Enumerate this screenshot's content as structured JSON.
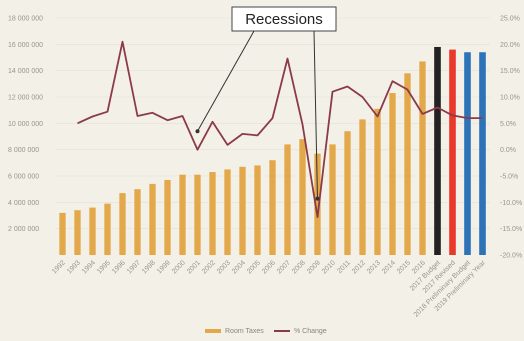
{
  "chart_data": {
    "type": "bar",
    "categories": [
      "1992",
      "1993",
      "1994",
      "1995",
      "1996",
      "1997",
      "1998",
      "1999",
      "2000",
      "2001",
      "2002",
      "2003",
      "2004",
      "2005",
      "2006",
      "2007",
      "2008",
      "2009",
      "2010",
      "2011",
      "2012",
      "2013",
      "2014",
      "2015",
      "2016",
      "2017 Budget",
      "2017 Revised",
      "2018 Preliminary Budget",
      "2019 Preliminary Year"
    ],
    "series": [
      {
        "name": "Room Taxes",
        "kind": "bar",
        "axis": "left",
        "color": "#e3a84a",
        "values": [
          3200000,
          3400000,
          3600000,
          3900000,
          4700000,
          5000000,
          5400000,
          5700000,
          6100000,
          6100000,
          6300000,
          6500000,
          6700000,
          6800000,
          7200000,
          8400000,
          8800000,
          7700000,
          8400000,
          9400000,
          10300000,
          11100000,
          12300000,
          13800000,
          14700000,
          15800000,
          15600000,
          15400000,
          15400000
        ],
        "bar_colors": {
          "25": "#222222",
          "26": "#e8392b",
          "27": "#2c73b8",
          "28": "#2c73b8"
        }
      },
      {
        "name": "% Change",
        "kind": "line",
        "axis": "right",
        "color": "#8b3a48",
        "values": [
          null,
          5.0,
          6.3,
          7.2,
          20.5,
          6.4,
          7.0,
          5.6,
          6.4,
          0.0,
          5.3,
          0.9,
          3.0,
          2.7,
          6.0,
          17.3,
          4.8,
          -12.8,
          11.0,
          12.0,
          10.0,
          6.3,
          13.0,
          11.4,
          6.8,
          8.0,
          6.5,
          6.0,
          6.0
        ]
      }
    ],
    "y_left": {
      "min": 0,
      "max": 18000000,
      "ticks": [
        "2 000 000",
        "4 000 000",
        "6 000 000",
        "8 000 000",
        "10 000 000",
        "12 000 000",
        "14 000 000",
        "16 000 000",
        "18 000 000"
      ]
    },
    "y_right": {
      "min": -20,
      "max": 25,
      "ticks": [
        "-20.0%",
        "-15.0%",
        "-10.0%",
        "-5.0%",
        "0.0%",
        "5.0%",
        "10.0%",
        "15.0%",
        "20.0%",
        "25.0%"
      ]
    },
    "annotation": {
      "text": "Recessions",
      "targets": [
        "2001",
        "2009"
      ]
    },
    "legend": {
      "position": "bottom",
      "items": [
        "Room Taxes",
        "% Change"
      ]
    }
  }
}
